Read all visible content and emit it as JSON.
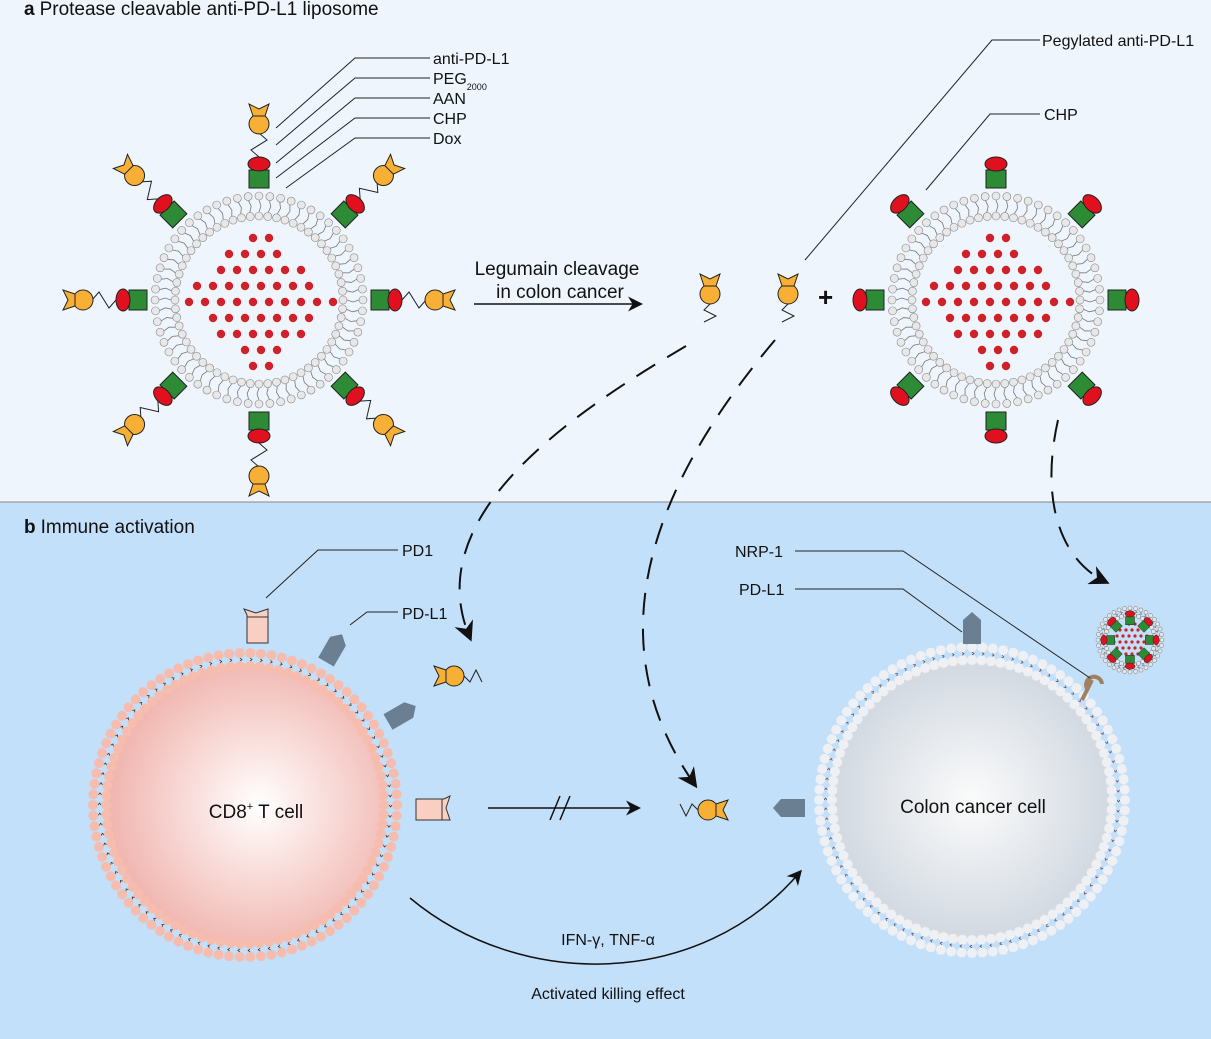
{
  "panel_a": {
    "letter": "a",
    "title": "Protease cleavable anti-PD-L1 liposome",
    "legend": [
      "anti-PD-L1",
      "PEG",
      "AAN",
      "CHP",
      "Dox"
    ],
    "peg_subscript": "2000",
    "cleavage_line1": "Legumain cleavage",
    "cleavage_line2": "in colon cancer",
    "pegylated_label": "Pegylated anti-PD-L1",
    "chp_label": "CHP",
    "plus": "+"
  },
  "panel_b": {
    "letter": "b",
    "title": "Immune activation",
    "pd1_label": "PD1",
    "pdl1_label_t": "PD-L1",
    "nrp1_label": "NRP-1",
    "pdl1_label_c": "PD-L1",
    "tcell_label": "CD8",
    "tcell_sup": "+",
    "tcell_suffix": " T cell",
    "cancer_label": "Colon cancer cell",
    "cytokines": "IFN-γ, TNF-α",
    "effect": "Activated killing effect"
  },
  "colors": {
    "panel_a_bg": "#eef5fd",
    "panel_b_bg": "#c3e0fa",
    "antibody": "#f7b035",
    "aan": "#e0101e",
    "chp": "#2e8b35",
    "dox": "#d0202a",
    "pdl1": "#6b7f92",
    "pd1": "#f8cfc2"
  }
}
